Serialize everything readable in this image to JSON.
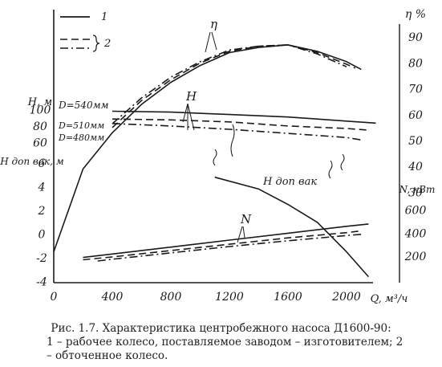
{
  "caption": {
    "line1": "Рис. 1.7. Характеристика центробежного насоса Д1600-90:",
    "line2": "1 – рабочее колесо, поставляемое заводом – изготовителем; 2 – обточенное колесо."
  },
  "chart_data": {
    "type": "line",
    "title": "",
    "grid": false,
    "x": {
      "label": "Q, м³/ч",
      "range": [
        0,
        2200
      ],
      "ticks": [
        "0",
        "400",
        "800",
        "1200",
        "1600",
        "2000"
      ],
      "tick_values": [
        0,
        400,
        800,
        1200,
        1600,
        2000
      ]
    },
    "axes": {
      "H": {
        "label": "H, м",
        "range": [
          20,
          110
        ],
        "ticks": [
          "100",
          "80",
          "60"
        ],
        "tick_values": [
          100,
          80,
          60
        ]
      },
      "Hvak": {
        "label": "H доп вак, м",
        "range": [
          -4,
          6
        ],
        "ticks": [
          "6",
          "4",
          "2",
          "0",
          "-2",
          "-4"
        ],
        "tick_values": [
          6,
          4,
          2,
          0,
          -2,
          -4
        ]
      },
      "eta": {
        "label": "η %",
        "range": [
          0,
          100
        ],
        "ticks": [
          "90",
          "80",
          "70",
          "60",
          "50",
          "40",
          "30"
        ],
        "tick_values": [
          90,
          80,
          70,
          60,
          50,
          40,
          30
        ]
      },
      "N": {
        "label": "N, кВт",
        "range": [
          0,
          800
        ],
        "ticks": [
          "600",
          "400",
          "200"
        ],
        "tick_values": [
          600,
          400,
          200
        ]
      }
    },
    "legend": {
      "position": "top-left",
      "entries": [
        {
          "label": "1",
          "style": "solid"
        },
        {
          "label": "2",
          "style": "dashed, dash-dot"
        }
      ]
    },
    "annotations": {
      "eta": "η",
      "H": "H",
      "N": "N",
      "hvak": "H доп вак",
      "d540": "D=540мм",
      "d510": "D=510мм",
      "d480": "D=480мм"
    },
    "series": [
      {
        "name": "η",
        "axis": "eta",
        "style": "solid",
        "x": [
          0,
          200,
          400,
          600,
          800,
          1000,
          1200,
          1400,
          1600,
          1800,
          2000,
          2100
        ],
        "y": [
          7,
          39,
          53,
          64,
          72.5,
          79,
          84,
          86,
          87,
          84.5,
          80.5,
          77.5
        ]
      },
      {
        "name": "η",
        "axis": "eta",
        "style": "dashed",
        "x": [
          400,
          600,
          800,
          1000,
          1200,
          1400,
          1600,
          1800,
          2000,
          2060
        ],
        "y": [
          55,
          65.5,
          73.5,
          80,
          84.5,
          86.5,
          87,
          84,
          79.5,
          78
        ]
      },
      {
        "name": "η",
        "axis": "eta",
        "style": "dashdot",
        "x": [
          400,
          600,
          800,
          1000,
          1200,
          1400,
          1600,
          1800,
          2000
        ],
        "y": [
          56.5,
          66.5,
          74.5,
          80.5,
          85,
          86.5,
          87,
          83.5,
          78.5
        ]
      },
      {
        "name": "H",
        "axis": "H",
        "style": "solid",
        "x": [
          400,
          800,
          1200,
          1600,
          2000,
          2200
        ],
        "y": [
          98,
          97,
          94,
          91,
          86,
          83.5
        ]
      },
      {
        "name": "H",
        "axis": "H",
        "style": "dashed",
        "x": [
          400,
          800,
          1200,
          1600,
          2000,
          2150
        ],
        "y": [
          88.5,
          87.5,
          85,
          80,
          77,
          75
        ]
      },
      {
        "name": "H",
        "axis": "H",
        "style": "dashdot",
        "x": [
          400,
          800,
          1200,
          1600,
          2000,
          2100
        ],
        "y": [
          83,
          80,
          76,
          71,
          66,
          63
        ]
      },
      {
        "name": "H доп вак",
        "axis": "Hvak",
        "style": "solid",
        "x": [
          1100,
          1400,
          1600,
          1800,
          2000,
          2150
        ],
        "y": [
          4.8,
          3.8,
          2.5,
          1,
          -1.5,
          -3.6
        ]
      },
      {
        "name": "N",
        "axis": "N",
        "style": "solid",
        "x": [
          200,
          400,
          800,
          1200,
          1600,
          2000,
          2150
        ],
        "y": [
          190,
          220,
          280,
          340,
          400,
          460,
          480
        ]
      },
      {
        "name": "N",
        "axis": "N",
        "style": "dashed",
        "x": [
          200,
          400,
          800,
          1200,
          1600,
          2000,
          2100
        ],
        "y": [
          170,
          195,
          250,
          305,
          360,
          405,
          420
        ]
      },
      {
        "name": "N",
        "axis": "N",
        "style": "dashdot",
        "x": [
          300,
          400,
          800,
          1200,
          1600,
          2000,
          2100
        ],
        "y": [
          160,
          175,
          230,
          285,
          335,
          380,
          390
        ]
      }
    ]
  }
}
